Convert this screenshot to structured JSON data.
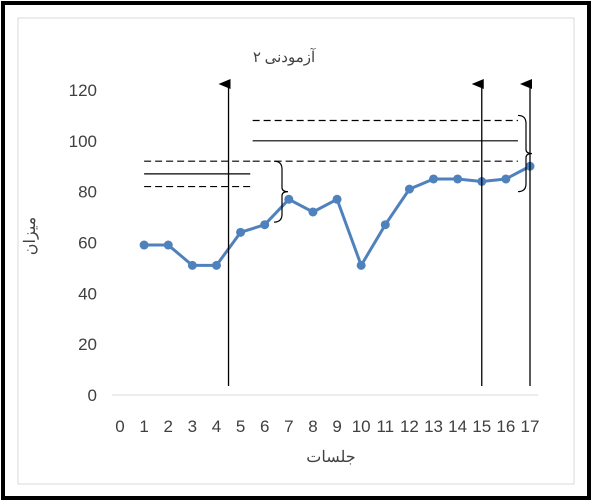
{
  "chart_data": {
    "type": "line",
    "title": "آزمودنی ۲",
    "xlabel": "جلسات",
    "ylabel": "میزان",
    "x_ticks": [
      "0",
      "1",
      "2",
      "3",
      "4",
      "5",
      "6",
      "7",
      "8",
      "9",
      "10",
      "11",
      "12",
      "13",
      "14",
      "15",
      "16",
      "17"
    ],
    "y_ticks": [
      "0",
      "20",
      "40",
      "60",
      "80",
      "100",
      "120"
    ],
    "ylim": [
      0,
      120
    ],
    "xlim": [
      0,
      17
    ],
    "series": [
      {
        "x": [
          1,
          2,
          3,
          4,
          5,
          6,
          7,
          8,
          9,
          10,
          11,
          12,
          13,
          14,
          15,
          16,
          17
        ],
        "values": [
          59,
          59,
          51,
          51,
          64,
          67,
          77,
          72,
          77,
          51,
          67,
          81,
          85,
          85,
          84,
          85,
          90
        ]
      }
    ],
    "phase_lines_x": [
      4.5,
      15.0,
      17.0
    ],
    "reference_bands": [
      {
        "x_range": [
          1.0,
          5.4
        ],
        "mean": 87,
        "upper": 92,
        "lower": 82
      },
      {
        "x_range": [
          5.5,
          16.5
        ],
        "mean": 100,
        "upper": 108,
        "lower": 92
      }
    ],
    "grid": false,
    "legend": "none",
    "line_color": "#4f81bd",
    "axis_color": "#d9d9d9"
  }
}
